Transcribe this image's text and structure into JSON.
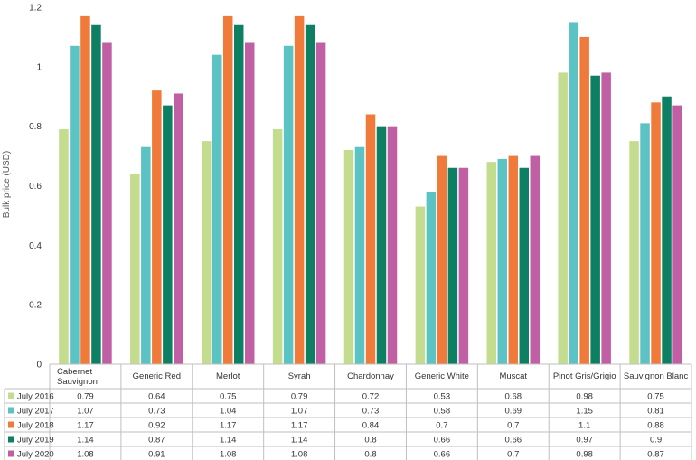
{
  "chart_data": {
    "type": "bar",
    "ylabel": "Bulk price (USD)",
    "ylim": [
      0,
      1.2
    ],
    "yticks": [
      "0",
      "0.2",
      "0.4",
      "0.6",
      "0.8",
      "1",
      "1.2"
    ],
    "ytick_values": [
      0,
      0.2,
      0.4,
      0.6,
      0.8,
      1.0,
      1.2
    ],
    "grid": false,
    "legend_placement": "table-below",
    "categories": [
      "Cabernet Sauvignon",
      "Generic Red",
      "Merlot",
      "Syrah",
      "Chardonnay",
      "Generic White",
      "Muscat",
      "Pinot Gris/Grigio",
      "Sauvignon Blanc"
    ],
    "category_lines": [
      [
        "Cabernet",
        "Sauvignon"
      ],
      [
        "Generic Red"
      ],
      [
        "Merlot"
      ],
      [
        "Syrah"
      ],
      [
        "Chardonnay"
      ],
      [
        "Generic White"
      ],
      [
        "Muscat"
      ],
      [
        "Pinot Gris/Grigio"
      ],
      [
        "Sauvignon Blanc"
      ]
    ],
    "series": [
      {
        "name": "July 2016",
        "color": "#c3dc8e",
        "values": [
          0.79,
          0.64,
          0.75,
          0.79,
          0.72,
          0.53,
          0.68,
          0.98,
          0.75
        ],
        "labels": [
          "0.79",
          "0.64",
          "0.75",
          "0.79",
          "0.72",
          "0.53",
          "0.68",
          "0.98",
          "0.75"
        ]
      },
      {
        "name": "July 2017",
        "color": "#5bc3c3",
        "values": [
          1.07,
          0.73,
          1.04,
          1.07,
          0.73,
          0.58,
          0.69,
          1.15,
          0.81
        ],
        "labels": [
          "1.07",
          "0.73",
          "1.04",
          "1.07",
          "0.73",
          "0.58",
          "0.69",
          "1.15",
          "0.81"
        ]
      },
      {
        "name": "July 2018",
        "color": "#f07a3a",
        "values": [
          1.17,
          0.92,
          1.17,
          1.17,
          0.84,
          0.7,
          0.7,
          1.1,
          0.88
        ],
        "labels": [
          "1.17",
          "0.92",
          "1.17",
          "1.17",
          "0.84",
          "0.7",
          "0.7",
          "1.1",
          "0.88"
        ]
      },
      {
        "name": "July 2019",
        "color": "#0d7f63",
        "values": [
          1.14,
          0.87,
          1.14,
          1.14,
          0.8,
          0.66,
          0.66,
          0.97,
          0.9
        ],
        "labels": [
          "1.14",
          "0.87",
          "1.14",
          "1.14",
          "0.8",
          "0.66",
          "0.66",
          "0.97",
          "0.9"
        ]
      },
      {
        "name": "July 2020",
        "color": "#c05fa3",
        "values": [
          1.08,
          0.91,
          1.08,
          1.08,
          0.8,
          0.66,
          0.7,
          0.98,
          0.87
        ],
        "labels": [
          "1.08",
          "0.91",
          "1.08",
          "1.08",
          "0.8",
          "0.66",
          "0.7",
          "0.98",
          "0.87"
        ]
      }
    ]
  }
}
